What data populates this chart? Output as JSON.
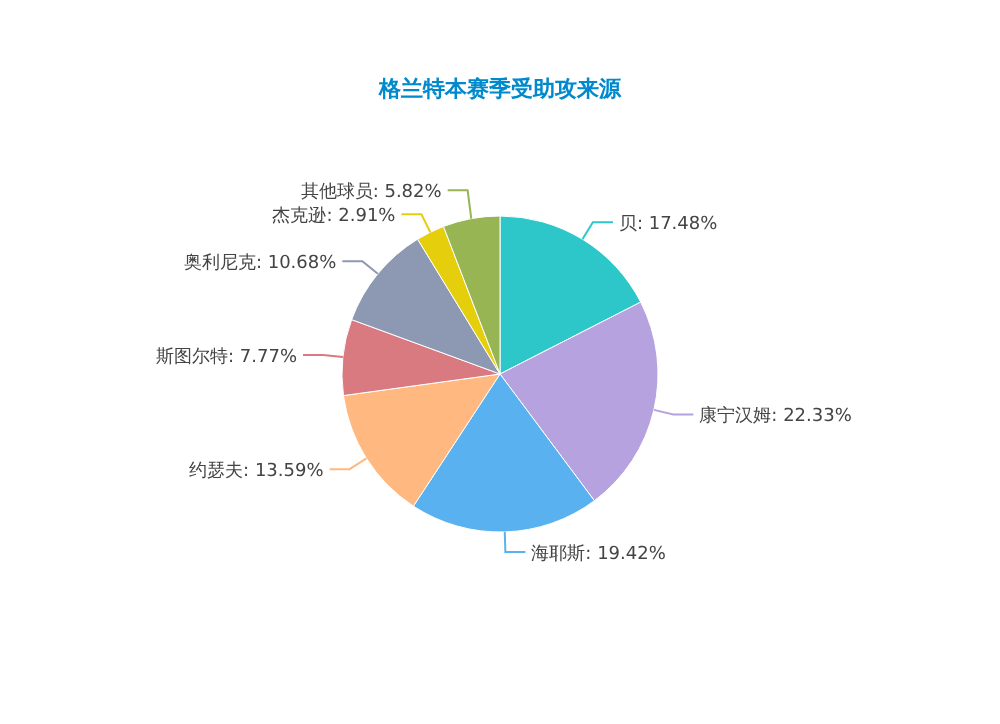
{
  "chart_data": {
    "type": "pie",
    "title": "格兰特本赛季受助攻来源",
    "categories": [
      "贝",
      "康宁汉姆",
      "海耶斯",
      "约瑟夫",
      "斯图尔特",
      "奥利尼克",
      "杰克逊",
      "其他球员"
    ],
    "values": [
      17.48,
      22.33,
      19.42,
      13.59,
      7.77,
      10.68,
      2.91,
      5.82
    ],
    "colors": [
      "#2ec7c9",
      "#b6a2de",
      "#5ab1ef",
      "#ffb980",
      "#d87a80",
      "#8d98b3",
      "#e5cf0d",
      "#97b552"
    ],
    "value_labels": [
      ": 17.48%",
      ": 22.33%",
      ": 19.42%",
      ": 13.59%",
      ": 7.77%",
      ": 10.68%",
      ": 2.91%",
      ": 5.82%"
    ]
  }
}
